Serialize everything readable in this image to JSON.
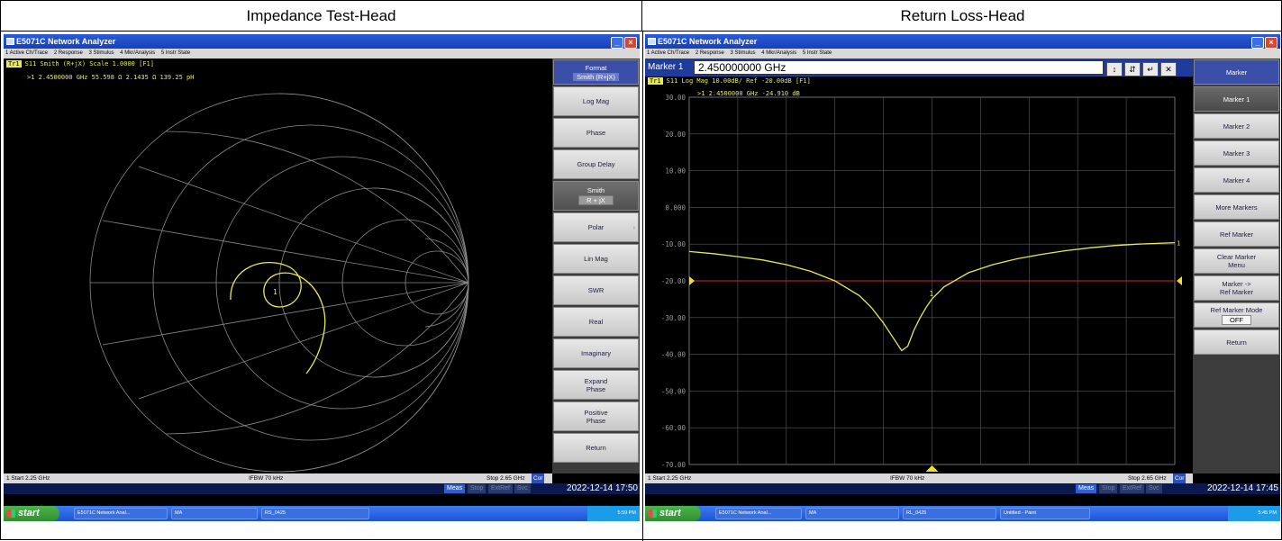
{
  "captions": {
    "left": "Impedance Test-Head",
    "right": "Return Loss-Head"
  },
  "colors": {
    "trace": "#e8e858",
    "grid": "#8a8a8a",
    "ref_line": "#d02828",
    "softkey_head": "#3b4fa8"
  },
  "left": {
    "window_title": "E5071C Network Analyzer",
    "menu": [
      "1 Active Ch/Trace",
      "2 Response",
      "3 Stimulus",
      "4 Mkr/Analysis",
      "5 Instr State"
    ],
    "trace_tag": "Tr1",
    "trace_header": "S11 Smith (R+jX) Scale 1.0000 [F1]",
    "marker_readout": ">1  2.4500000 GHz  55.598 Ω  2.1435 Ω  139.25 pH",
    "marker_label": "1",
    "status": {
      "start": "1  Start 2.25 GHz",
      "ifbw": "IFBW 70 kHz",
      "stop": "Stop 2.65 GHz",
      "cor": "Cor"
    },
    "status_chips": {
      "meas": "Meas",
      "stop": "Stop",
      "extref": "ExtRef",
      "svc": "Svc"
    },
    "clock": "2022-12-14 17:50",
    "softkeys": {
      "title": "Format",
      "title_value": "Smith (R+jX)",
      "items": [
        "Log Mag",
        "Phase",
        "Group Delay"
      ],
      "smith": "Smith",
      "smith_value": "R + jX",
      "items2": [
        "Polar",
        "Lin Mag",
        "SWR",
        "Real",
        "Imaginary"
      ],
      "expand_1": "Expand",
      "expand_2": "Phase",
      "positive_1": "Positive",
      "positive_2": "Phase",
      "return": "Return"
    },
    "taskbar": {
      "start": "start",
      "task1": "E5071C Network Anal...",
      "task2": "MA",
      "task3": "RS_0425",
      "tray": "5:59 PM"
    }
  },
  "right": {
    "window_title": "E5071C Network Analyzer",
    "menu": [
      "1 Active Ch/Trace",
      "2 Response",
      "3 Stimulus",
      "4 Mkr/Analysis",
      "5 Instr State"
    ],
    "entry": {
      "label": "Marker 1",
      "value": "2.450000000 GHz"
    },
    "trace_tag": "Tr1",
    "trace_header": "S11 Log Mag 10.00dB/ Ref -20.00dB [F1]",
    "marker_readout": ">1  2.4500000 GHz  -24.910 dB",
    "marker_label": "1",
    "end_marker": "1",
    "status": {
      "start": "1  Start 2.25 GHz",
      "ifbw": "IFBW 70 kHz",
      "stop": "Stop 2.65 GHz",
      "cor": "Cor"
    },
    "status_chips": {
      "meas": "Meas",
      "stop": "Stop",
      "extref": "ExtRef",
      "svc": "Svc"
    },
    "clock": "2022-12-14 17:45",
    "softkeys": {
      "title": "Marker",
      "items": [
        "Marker 1",
        "Marker 2",
        "Marker 3",
        "Marker 4",
        "More Markers",
        "Ref Marker"
      ],
      "clear_1": "Clear Marker",
      "clear_2": "Menu",
      "mref_1": "Marker ->",
      "mref_2": "Ref Marker",
      "mode": "Ref Marker Mode",
      "mode_value": "OFF",
      "return": "Return"
    },
    "taskbar": {
      "start": "start",
      "task1": "E5071C Network Anal...",
      "task2": "MA",
      "task3": "RL_0425",
      "task4": "Untitled - Paint",
      "tray": "5:45 PM"
    }
  },
  "chart_data": {
    "type": "line",
    "title": "S11 Log Mag 10.00dB/ Ref -20.00dB [F1]",
    "xlabel": "",
    "ylabel": "",
    "xlim": [
      2.25,
      2.65
    ],
    "ylim": [
      -70,
      30
    ],
    "x_unit": "GHz",
    "y_ticks": [
      30,
      20,
      10,
      0,
      -10,
      -20,
      -30,
      -40,
      -50,
      -60,
      -70
    ],
    "y_tick_labels": [
      "30.00",
      "20.00",
      "10.00",
      "0.000",
      "-10.00",
      "-20.00",
      "-30.00",
      "-40.00",
      "-50.00",
      "-60.00",
      "-70.00"
    ],
    "ref_level": -20,
    "grid": true,
    "series": [
      {
        "x": [
          2.25,
          2.27,
          2.29,
          2.31,
          2.33,
          2.35,
          2.37,
          2.39,
          2.4,
          2.41,
          2.42,
          2.425,
          2.43,
          2.435,
          2.44,
          2.445,
          2.45,
          2.46,
          2.48,
          2.5,
          2.52,
          2.54,
          2.56,
          2.58,
          2.6,
          2.62,
          2.65
        ],
        "values": [
          -12.0,
          -12.6,
          -13.4,
          -14.3,
          -15.6,
          -17.4,
          -20.0,
          -24.0,
          -27.2,
          -31.5,
          -36.5,
          -39.0,
          -37.8,
          -33.5,
          -30.2,
          -27.3,
          -24.9,
          -21.6,
          -17.8,
          -15.6,
          -14.0,
          -12.8,
          -11.8,
          -11.0,
          -10.4,
          -10.0,
          -9.6
        ]
      }
    ],
    "markers": [
      {
        "label": "1",
        "x": 2.45,
        "y": -24.91
      }
    ]
  }
}
